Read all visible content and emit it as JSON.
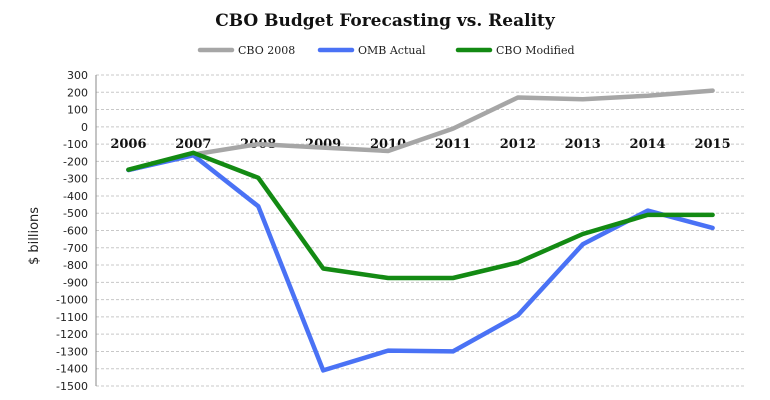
{
  "chart_data": {
    "type": "line",
    "title": "CBO Budget Forecasting vs. Reality",
    "xlabel": "",
    "ylabel": "$ billions",
    "categories": [
      "2006",
      "2007",
      "2008",
      "2009",
      "2010",
      "2011",
      "2012",
      "2013",
      "2014",
      "2015"
    ],
    "ylim": [
      -1500,
      300
    ],
    "ytick_step": 100,
    "grid": true,
    "legend_position": "top-center",
    "series": [
      {
        "name": "CBO 2008",
        "color": "#a6a6a6",
        "values": [
          -250,
          -160,
          -100,
          -120,
          -140,
          -10,
          170,
          160,
          180,
          210
        ]
      },
      {
        "name": "OMB Actual",
        "color": "#4a72f5",
        "values": [
          -250,
          -165,
          -460,
          -1410,
          -1295,
          -1300,
          -1090,
          -680,
          -485,
          -585
        ]
      },
      {
        "name": "CBO Modified",
        "color": "#138a13",
        "values": [
          -248,
          -150,
          -295,
          -820,
          -875,
          -875,
          -785,
          -620,
          -510,
          -510
        ]
      }
    ]
  }
}
